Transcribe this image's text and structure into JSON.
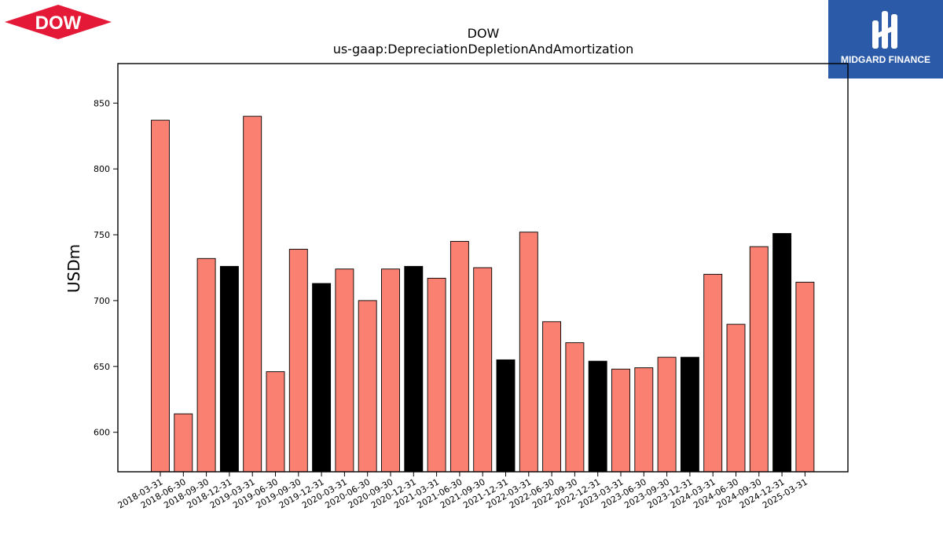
{
  "brand": {
    "left_logo_text": "DOW",
    "right_logo_text": "MIDGARD FINANCE",
    "left_logo_color": "#e31937",
    "right_logo_color": "#2b5aa8"
  },
  "chart_data": {
    "type": "bar",
    "title": "DOW",
    "subtitle": "us-gaap:DepreciationDepletionAndAmortization",
    "xlabel": "",
    "ylabel": "USDm",
    "ylim": [
      570,
      880
    ],
    "yticks": [
      600,
      650,
      700,
      750,
      800,
      850
    ],
    "grid": false,
    "colors": {
      "quarter": "#fa8072",
      "year_end": "#000000"
    },
    "categories": [
      "2018-03-31",
      "2018-06-30",
      "2018-09-30",
      "2018-12-31",
      "2019-03-31",
      "2019-06-30",
      "2019-09-30",
      "2019-12-31",
      "2020-03-31",
      "2020-06-30",
      "2020-09-30",
      "2020-12-31",
      "2021-03-31",
      "2021-06-30",
      "2021-09-30",
      "2021-12-31",
      "2022-03-31",
      "2022-06-30",
      "2022-09-30",
      "2022-12-31",
      "2023-03-31",
      "2023-06-30",
      "2023-09-30",
      "2023-12-31",
      "2024-03-31",
      "2024-06-30",
      "2024-09-30",
      "2024-12-31",
      "2025-03-31"
    ],
    "values": [
      837,
      614,
      732,
      726,
      840,
      646,
      739,
      713,
      724,
      700,
      724,
      726,
      717,
      745,
      725,
      655,
      752,
      684,
      668,
      654,
      648,
      649,
      657,
      657,
      720,
      682,
      741,
      751,
      714
    ],
    "year_end": [
      false,
      false,
      false,
      true,
      false,
      false,
      false,
      true,
      false,
      false,
      false,
      true,
      false,
      false,
      false,
      true,
      false,
      false,
      false,
      true,
      false,
      false,
      false,
      true,
      false,
      false,
      false,
      true,
      false
    ]
  }
}
